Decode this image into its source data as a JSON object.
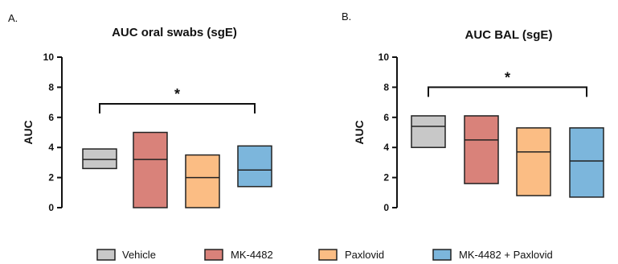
{
  "chart_data": [
    {
      "type": "box",
      "panel": "A.",
      "title": "AUC oral swabs (sgE)",
      "ylabel": "AUC",
      "ylim": [
        0,
        10
      ],
      "yticks": [
        "0",
        "2",
        "4",
        "6",
        "8",
        "10"
      ],
      "categories": [
        "Vehicle",
        "MK-4482",
        "Paxlovid",
        "MK-4482 + Paxlovid"
      ],
      "boxes": [
        {
          "name": "Vehicle",
          "min": 2.6,
          "median": 3.2,
          "max": 3.9
        },
        {
          "name": "MK-4482",
          "min": 0.0,
          "median": 3.2,
          "max": 5.0
        },
        {
          "name": "Paxlovid",
          "min": 0.0,
          "median": 2.0,
          "max": 3.5
        },
        {
          "name": "MK-4482 + Paxlovid",
          "min": 1.4,
          "median": 2.5,
          "max": 4.1
        }
      ],
      "significance": {
        "from": "Vehicle",
        "to": "MK-4482 + Paxlovid",
        "label": "*",
        "y": 6.9
      }
    },
    {
      "type": "box",
      "panel": "B.",
      "title": "AUC BAL (sgE)",
      "ylabel": "AUC",
      "ylim": [
        0,
        10
      ],
      "yticks": [
        "0",
        "2",
        "4",
        "6",
        "8",
        "10"
      ],
      "categories": [
        "Vehicle",
        "MK-4482",
        "Paxlovid",
        "MK-4482 + Paxlovid"
      ],
      "boxes": [
        {
          "name": "Vehicle",
          "min": 4.0,
          "median": 5.4,
          "max": 6.1
        },
        {
          "name": "MK-4482",
          "min": 1.6,
          "median": 4.5,
          "max": 6.1
        },
        {
          "name": "Paxlovid",
          "min": 0.8,
          "median": 3.7,
          "max": 5.3
        },
        {
          "name": "MK-4482 + Paxlovid",
          "min": 0.7,
          "median": 3.1,
          "max": 5.3
        }
      ],
      "significance": {
        "from": "Vehicle",
        "to": "MK-4482 + Paxlovid",
        "label": "*",
        "y": 8.0
      }
    }
  ],
  "legend": [
    {
      "label": "Vehicle",
      "color": "#c8c8c8"
    },
    {
      "label": "MK-4482",
      "color": "#d9827a"
    },
    {
      "label": "Paxlovid",
      "color": "#fbbd84"
    },
    {
      "label": "MK-4482 + Paxlovid",
      "color": "#7cb6dc"
    }
  ]
}
